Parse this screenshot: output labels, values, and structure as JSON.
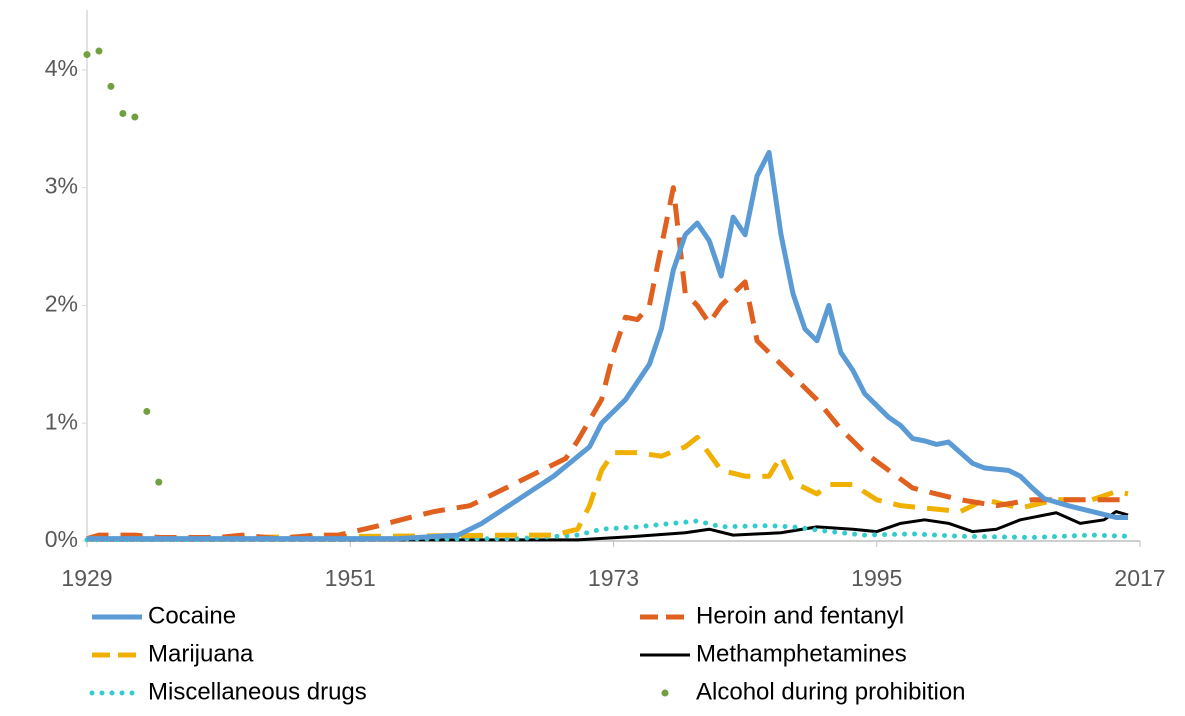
{
  "chart_data": {
    "type": "line",
    "xlim": [
      1929,
      2017
    ],
    "xticks": [
      1929,
      1951,
      1973,
      1995,
      2017
    ],
    "ylim": [
      0,
      4.5
    ],
    "yticks": [
      {
        "value": 0,
        "label": "0%"
      },
      {
        "value": 1,
        "label": "1%"
      },
      {
        "value": 2,
        "label": "2%"
      },
      {
        "value": 3,
        "label": "3%"
      },
      {
        "value": 4,
        "label": "4%"
      }
    ],
    "series": [
      {
        "name": "Cocaine",
        "color": "#5b9bd5",
        "style": "solid",
        "x": [
          1929,
          1955,
          1960,
          1962,
          1965,
          1968,
          1971,
          1972,
          1974,
          1976,
          1977,
          1978,
          1979,
          1980,
          1981,
          1982,
          1983,
          1984,
          1985,
          1986,
          1987,
          1988,
          1989,
          1990,
          1991,
          1992,
          1993,
          1994,
          1995,
          1996,
          1997,
          1998,
          1999,
          2000,
          2001,
          2002,
          2003,
          2004,
          2006,
          2007,
          2008,
          2009,
          2011,
          2013,
          2015,
          2016
        ],
        "values": [
          0.02,
          0.02,
          0.05,
          0.15,
          0.35,
          0.55,
          0.8,
          1.0,
          1.2,
          1.5,
          1.8,
          2.3,
          2.6,
          2.7,
          2.55,
          2.25,
          2.75,
          2.6,
          3.1,
          3.3,
          2.6,
          2.1,
          1.8,
          1.7,
          2.0,
          1.6,
          1.45,
          1.25,
          1.15,
          1.05,
          0.98,
          0.87,
          0.85,
          0.82,
          0.84,
          0.75,
          0.66,
          0.62,
          0.6,
          0.55,
          0.45,
          0.36,
          0.3,
          0.25,
          0.2,
          0.2
        ]
      },
      {
        "name": "Heroin and fentanyl",
        "color": "#e06020",
        "style": "dashed",
        "x": [
          1929,
          1930,
          1933,
          1935,
          1940,
          1942,
          1945,
          1948,
          1950,
          1953,
          1956,
          1958,
          1961,
          1964,
          1967,
          1969,
          1970,
          1972,
          1973,
          1974,
          1975,
          1976,
          1977,
          1978,
          1979,
          1980,
          1981,
          1982,
          1983,
          1984,
          1985,
          1986,
          1988,
          1990,
          1992,
          1994,
          1996,
          1998,
          2000,
          2002,
          2005,
          2008,
          2012,
          2016
        ],
        "values": [
          0.02,
          0.05,
          0.05,
          0.03,
          0.03,
          0.05,
          0.02,
          0.05,
          0.05,
          0.12,
          0.2,
          0.25,
          0.3,
          0.45,
          0.6,
          0.7,
          0.85,
          1.2,
          1.6,
          1.9,
          1.88,
          2.0,
          2.5,
          3.0,
          2.1,
          2.0,
          1.85,
          2.0,
          2.1,
          2.2,
          1.7,
          1.6,
          1.4,
          1.2,
          0.95,
          0.75,
          0.6,
          0.45,
          0.4,
          0.35,
          0.3,
          0.35,
          0.35,
          0.35
        ]
      },
      {
        "name": "Marijuana",
        "color": "#f0b000",
        "style": "dashed",
        "x": [
          1929,
          1965,
          1968,
          1970,
          1971,
          1972,
          1973,
          1975,
          1977,
          1979,
          1980,
          1982,
          1984,
          1986,
          1987,
          1988,
          1990,
          1991,
          1993,
          1995,
          1997,
          1999,
          2002,
          2004,
          2007,
          2010,
          2013,
          2015,
          2016
        ],
        "values": [
          0.02,
          0.05,
          0.05,
          0.1,
          0.3,
          0.6,
          0.75,
          0.75,
          0.72,
          0.8,
          0.88,
          0.6,
          0.55,
          0.55,
          0.72,
          0.5,
          0.4,
          0.48,
          0.48,
          0.35,
          0.3,
          0.28,
          0.25,
          0.35,
          0.28,
          0.35,
          0.35,
          0.42,
          0.4
        ]
      },
      {
        "name": "Methamphetamines",
        "color": "#000000",
        "style": "solid-thin",
        "x": [
          1929,
          1970,
          1975,
          1979,
          1981,
          1983,
          1987,
          1990,
          1993,
          1995,
          1997,
          1999,
          2001,
          2003,
          2005,
          2007,
          2010,
          2012,
          2014,
          2015,
          2016
        ],
        "values": [
          0.01,
          0.01,
          0.04,
          0.07,
          0.1,
          0.05,
          0.07,
          0.12,
          0.1,
          0.08,
          0.15,
          0.18,
          0.15,
          0.08,
          0.1,
          0.18,
          0.24,
          0.15,
          0.18,
          0.25,
          0.22
        ]
      },
      {
        "name": "Miscellaneous drugs",
        "color": "#33cccc",
        "style": "dotted",
        "x": [
          1929,
          1965,
          1970,
          1972,
          1975,
          1978,
          1980,
          1982,
          1986,
          1988,
          1991,
          1994,
          1998,
          2002,
          2008,
          2013,
          2016
        ],
        "values": [
          0.01,
          0.02,
          0.05,
          0.1,
          0.12,
          0.15,
          0.17,
          0.12,
          0.13,
          0.12,
          0.08,
          0.05,
          0.06,
          0.04,
          0.03,
          0.05,
          0.04
        ]
      },
      {
        "name": "Alcohol during prohibition",
        "color": "#70a040",
        "style": "markers",
        "x": [
          1929,
          1930,
          1931,
          1932,
          1933,
          1934,
          1935
        ],
        "values": [
          4.13,
          4.16,
          3.86,
          3.63,
          3.6,
          1.1,
          0.5
        ]
      }
    ]
  }
}
